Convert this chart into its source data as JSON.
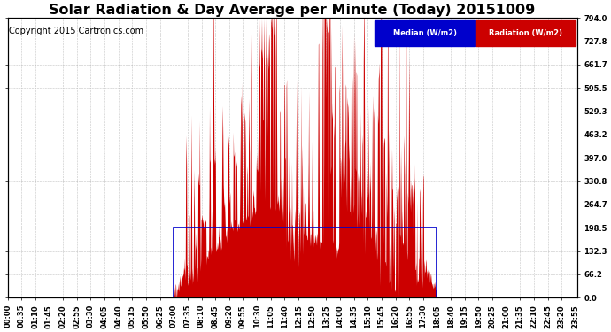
{
  "title": "Solar Radiation & Day Average per Minute (Today) 20151009",
  "copyright": "Copyright 2015 Cartronics.com",
  "ylim": [
    0,
    794.0
  ],
  "yticks": [
    0.0,
    66.2,
    132.3,
    198.5,
    264.7,
    330.8,
    397.0,
    463.2,
    529.3,
    595.5,
    661.7,
    727.8,
    794.0
  ],
  "ytick_labels": [
    "0.0",
    "66.2",
    "132.3",
    "198.5",
    "264.7",
    "330.8",
    "397.0",
    "463.2",
    "529.3",
    "595.5",
    "661.7",
    "727.8",
    "794.0"
  ],
  "xlim": [
    0,
    1439
  ],
  "median_value": 0.0,
  "legend_median_color": "#0000cc",
  "legend_median_label": "Median (W/m2)",
  "legend_radiation_color": "#cc0000",
  "legend_radiation_label": "Radiation (W/m2)",
  "background_color": "#ffffff",
  "plot_bg_color": "#ffffff",
  "grid_color": "#aaaaaa",
  "fill_color": "#cc0000",
  "median_line_color": "#0000cc",
  "rect_color": "#0000cc",
  "title_fontsize": 11.5,
  "copyright_fontsize": 7,
  "tick_fontsize": 6,
  "xtick_interval_minutes": 35,
  "rect_x_start": 420,
  "rect_x_end": 1085,
  "rect_y_top": 198.5,
  "figwidth": 6.9,
  "figheight": 3.75,
  "dpi": 100
}
